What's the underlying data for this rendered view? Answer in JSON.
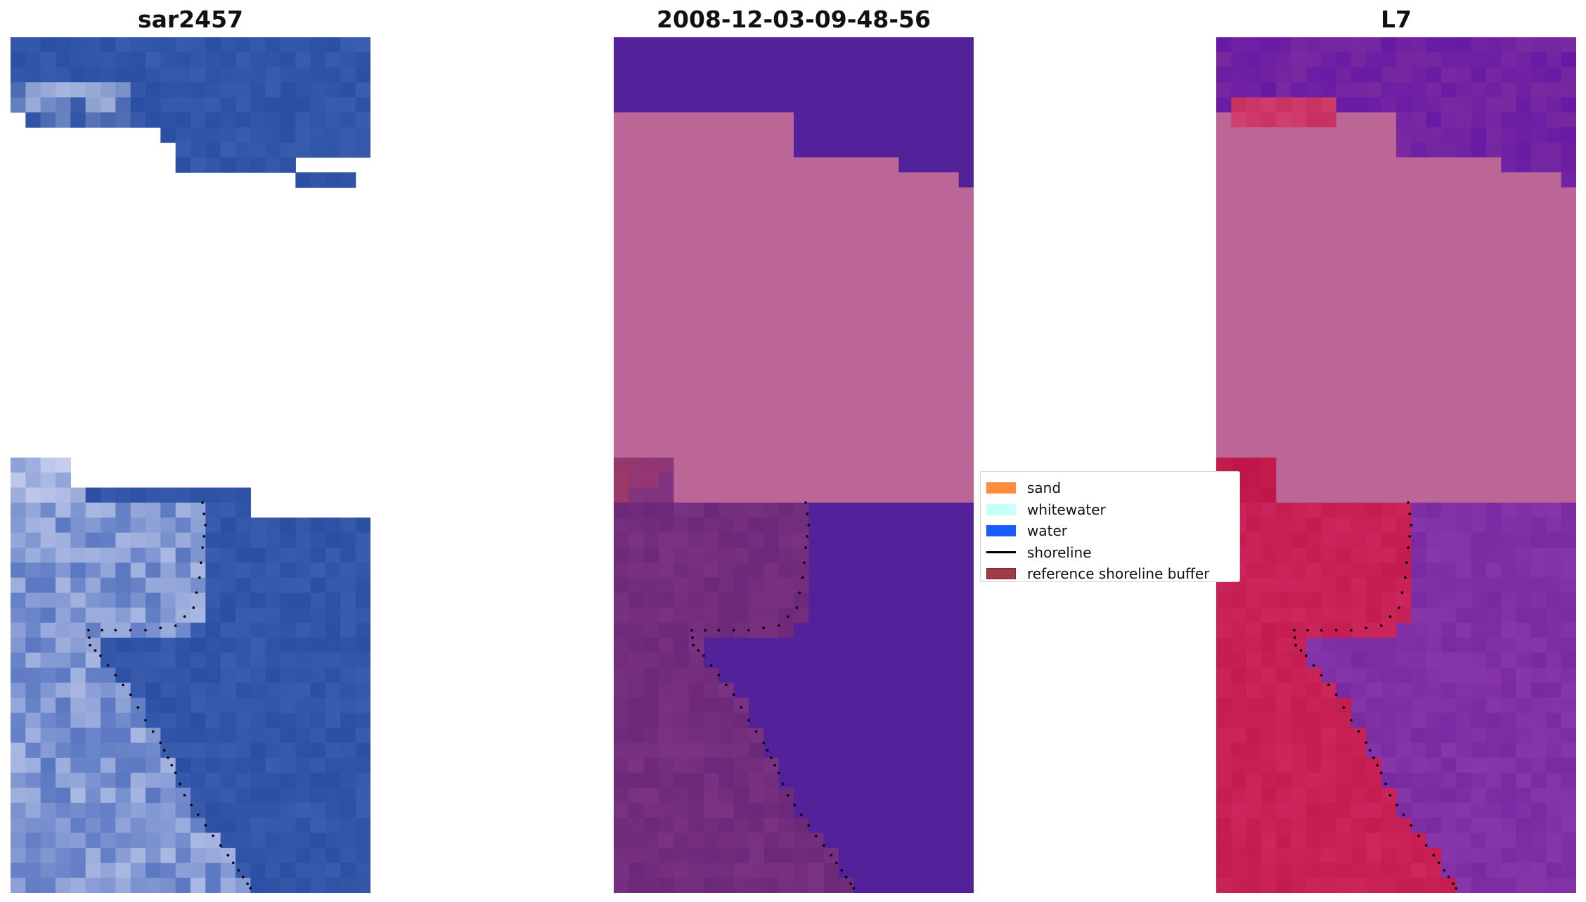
{
  "panels": [
    {
      "id": "sar",
      "title": "sar2457"
    },
    {
      "id": "classified",
      "title": "2008-12-03-09-48-56"
    },
    {
      "id": "l7",
      "title": "L7"
    }
  ],
  "legend": {
    "items": [
      {
        "label": "sand",
        "color": "#ff8c3a",
        "kind": "patch"
      },
      {
        "label": "whitewater",
        "color": "#c8fff8",
        "kind": "patch"
      },
      {
        "label": "water",
        "color": "#1a5cff",
        "kind": "patch"
      },
      {
        "label": "shoreline",
        "color": "#000000",
        "kind": "line"
      },
      {
        "label": "reference shoreline buffer",
        "color": "#a03c45",
        "kind": "patch",
        "edge": "#7a2a30"
      }
    ]
  },
  "colors": {
    "sar_water": "#2a4fa3",
    "sar_land": "#5a77c2",
    "sar_bright": "#dfe4f7",
    "mask_purple": "#53229a",
    "mask_pink": "#bc6697",
    "mask_land": "#7a3282",
    "l7_red": "#c41c4e",
    "l7_purple": "#7a2aa0",
    "shoreline": "#000000"
  }
}
